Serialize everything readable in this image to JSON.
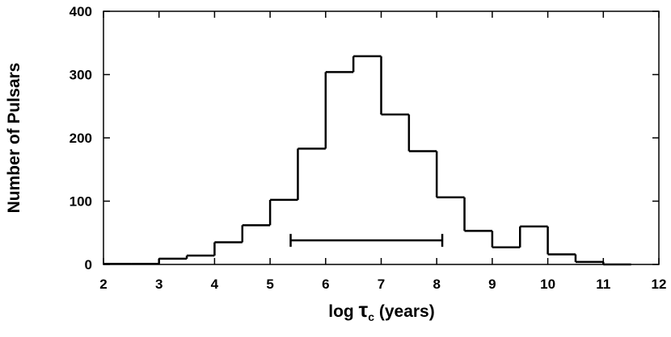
{
  "chart_data": {
    "type": "histogram",
    "bins": [
      2,
      2.5,
      3,
      3.5,
      4,
      4.5,
      5,
      5.5,
      6,
      6.5,
      7,
      7.5,
      8,
      8.5,
      9,
      9.5,
      10,
      10.5,
      11,
      11.5
    ],
    "values": [
      1,
      1,
      9,
      14,
      35,
      62,
      102,
      183,
      304,
      329,
      237,
      179,
      106,
      53,
      27,
      60,
      16,
      4,
      0
    ],
    "color": "#000000",
    "xlim": [
      2,
      12
    ],
    "xticks": [
      2,
      3,
      4,
      5,
      6,
      7,
      8,
      9,
      10,
      11,
      12
    ],
    "ylim": [
      0,
      400
    ],
    "yticks": [
      0,
      100,
      200,
      300,
      400
    ],
    "ylabel": "Number of Pulsars",
    "xlabel": [
      "log",
      "τ",
      "c",
      "(years)"
    ],
    "interval": {
      "xmin": 5.37,
      "xmax": 8.1,
      "y": 38
    }
  }
}
